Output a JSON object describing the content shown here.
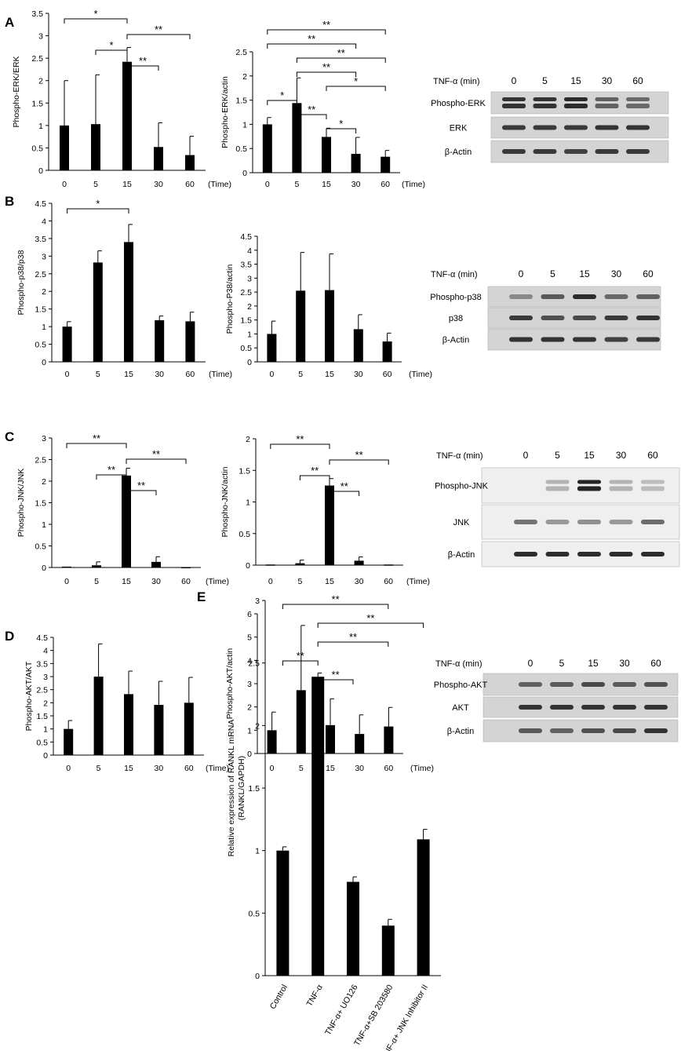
{
  "figure": {
    "wb_header": "TNF-α (min)",
    "wb_lanes": [
      "0",
      "5",
      "15",
      "30",
      "60"
    ],
    "time_label": "(Time)",
    "time_categories": [
      "0",
      "5",
      "15",
      "30",
      "60"
    ],
    "colors": {
      "bar": "#000000",
      "band": "#1a1a1a",
      "blot_bg": "#d4d4d4",
      "blot_bg_light": "#efefef"
    }
  },
  "blots": [
    {
      "panel": "A",
      "rows": [
        {
          "label": "Phospho-ERK",
          "bands": [
            0.85,
            0.85,
            0.9,
            0.55,
            0.5
          ],
          "doublet": true
        },
        {
          "label": "ERK",
          "bands": [
            0.8,
            0.8,
            0.8,
            0.85,
            0.85
          ]
        },
        {
          "label": "β-Actin",
          "bands": [
            0.8,
            0.8,
            0.75,
            0.8,
            0.8
          ]
        }
      ]
    },
    {
      "panel": "B",
      "rows": [
        {
          "label": "Phospho-p38",
          "bands": [
            0.3,
            0.6,
            0.9,
            0.5,
            0.55
          ]
        },
        {
          "label": "p38",
          "bands": [
            0.8,
            0.65,
            0.7,
            0.8,
            0.85
          ]
        },
        {
          "label": "β-Actin",
          "bands": [
            0.85,
            0.85,
            0.85,
            0.75,
            0.8
          ]
        }
      ]
    },
    {
      "panel": "C",
      "rows": [
        {
          "label": "Phospho-JNK",
          "bands": [
            0.0,
            0.15,
            0.95,
            0.15,
            0.1
          ],
          "doublet": true,
          "light": true
        },
        {
          "label": "JNK",
          "bands": [
            0.5,
            0.3,
            0.35,
            0.3,
            0.55
          ],
          "light": true
        },
        {
          "label": "β-Actin",
          "bands": [
            0.9,
            0.9,
            0.9,
            0.9,
            0.9
          ],
          "light": true
        }
      ]
    },
    {
      "panel": "D",
      "rows": [
        {
          "label": "Phospho-AKT",
          "bands": [
            0.55,
            0.6,
            0.7,
            0.6,
            0.65
          ]
        },
        {
          "label": "AKT",
          "bands": [
            0.85,
            0.85,
            0.85,
            0.85,
            0.85
          ]
        },
        {
          "label": "β-Actin",
          "bands": [
            0.6,
            0.55,
            0.65,
            0.7,
            0.85
          ]
        }
      ]
    }
  ],
  "chart_data": [
    {
      "id": "A1",
      "panel_letter": "A",
      "type": "bar",
      "ylabel": "Phospho-ERK/ERK",
      "categories": [
        "0",
        "5",
        "15",
        "30",
        "60"
      ],
      "values": [
        1.0,
        1.03,
        2.42,
        0.52,
        0.34
      ],
      "errors": [
        1.0,
        1.1,
        0.32,
        0.54,
        0.42
      ],
      "ylim": [
        0,
        3.5
      ],
      "yticks": [
        "0",
        "0.5",
        "1",
        "1.5",
        "2",
        "2.5",
        "3",
        "3.5"
      ],
      "significance": [
        {
          "from": 0,
          "to": 2,
          "label": "*"
        },
        {
          "from": 1,
          "to": 2,
          "label": "*"
        },
        {
          "from": 2,
          "to": 3,
          "label": "**"
        },
        {
          "from": 2,
          "to": 4,
          "label": "**"
        }
      ]
    },
    {
      "id": "A2",
      "type": "bar",
      "ylabel": "Phospho-ERK/actin",
      "categories": [
        "0",
        "5",
        "15",
        "30",
        "60"
      ],
      "values": [
        1.0,
        1.44,
        0.74,
        0.39,
        0.33
      ],
      "errors": [
        0.14,
        0.52,
        0.18,
        0.34,
        0.13
      ],
      "ylim": [
        0,
        2.5
      ],
      "yticks": [
        "0",
        "0.5",
        "1",
        "1.5",
        "2",
        "2.5"
      ],
      "significance": [
        {
          "from": 0,
          "to": 4,
          "label": "**"
        },
        {
          "from": 0,
          "to": 3,
          "label": "**"
        },
        {
          "from": 1,
          "to": 4,
          "label": "**"
        },
        {
          "from": 0,
          "to": 1,
          "label": "*"
        },
        {
          "from": 1,
          "to": 3,
          "label": "**"
        },
        {
          "from": 1,
          "to": 2,
          "label": "**"
        },
        {
          "from": 2,
          "to": 4,
          "label": "*"
        },
        {
          "from": 2,
          "to": 3,
          "label": "*"
        }
      ]
    },
    {
      "id": "B1",
      "panel_letter": "B",
      "type": "bar",
      "ylabel": "Phospho-p38/p38",
      "categories": [
        "0",
        "5",
        "15",
        "30",
        "60"
      ],
      "values": [
        1.0,
        2.82,
        3.4,
        1.18,
        1.15
      ],
      "errors": [
        0.14,
        0.33,
        0.5,
        0.12,
        0.26
      ],
      "ylim": [
        0,
        4.5
      ],
      "yticks": [
        "0",
        "0.5",
        "1",
        "1.5",
        "2",
        "2.5",
        "3",
        "3.5",
        "4",
        "4.5"
      ],
      "significance": [
        {
          "from": 0,
          "to": 2,
          "label": "*"
        }
      ]
    },
    {
      "id": "B2",
      "type": "bar",
      "ylabel": "Phospho-P38/actin",
      "categories": [
        "0",
        "5",
        "15",
        "30",
        "60"
      ],
      "values": [
        1.0,
        2.55,
        2.57,
        1.17,
        0.73
      ],
      "errors": [
        0.46,
        1.37,
        1.3,
        0.52,
        0.3
      ],
      "ylim": [
        0,
        4.5
      ],
      "yticks": [
        "0",
        "0.5",
        "1",
        "1.5",
        "2",
        "2.5",
        "3",
        "3.5",
        "4",
        "4.5"
      ],
      "significance": []
    },
    {
      "id": "C1",
      "panel_letter": "C",
      "type": "bar",
      "ylabel": "Phospho-JNK/JNK",
      "categories": [
        "0",
        "5",
        "15",
        "30",
        "60"
      ],
      "values": [
        0.02,
        0.05,
        2.13,
        0.13,
        0.01
      ],
      "errors": [
        0.0,
        0.08,
        0.17,
        0.12,
        0.0
      ],
      "ylim": [
        0,
        3
      ],
      "yticks": [
        "0",
        "0.5",
        "1",
        "1.5",
        "2",
        "2.5",
        "3"
      ],
      "significance": [
        {
          "from": 0,
          "to": 2,
          "label": "**"
        },
        {
          "from": 1,
          "to": 2,
          "label": "**"
        },
        {
          "from": 2,
          "to": 4,
          "label": "**"
        },
        {
          "from": 2,
          "to": 3,
          "label": "**"
        }
      ]
    },
    {
      "id": "C2",
      "type": "bar",
      "ylabel": "Phospho-JNK/actin",
      "categories": [
        "0",
        "5",
        "15",
        "30",
        "60"
      ],
      "values": [
        0.01,
        0.03,
        1.26,
        0.07,
        0.01
      ],
      "errors": [
        0.0,
        0.05,
        0.11,
        0.06,
        0.0
      ],
      "ylim": [
        0,
        2
      ],
      "yticks": [
        "0",
        "0.5",
        "1",
        "1.5",
        "2"
      ],
      "significance": [
        {
          "from": 0,
          "to": 2,
          "label": "**"
        },
        {
          "from": 1,
          "to": 2,
          "label": "**"
        },
        {
          "from": 2,
          "to": 4,
          "label": "**"
        },
        {
          "from": 2,
          "to": 3,
          "label": "**"
        }
      ]
    },
    {
      "id": "D1",
      "panel_letter": "D",
      "type": "bar",
      "ylabel": "Phospho-AKT/AKT",
      "categories": [
        "0",
        "5",
        "15",
        "30",
        "60"
      ],
      "values": [
        1.0,
        3.0,
        2.33,
        1.92,
        2.0
      ],
      "errors": [
        0.32,
        1.25,
        0.88,
        0.9,
        0.97
      ],
      "ylim": [
        0,
        4.5
      ],
      "yticks": [
        "0",
        "0.5",
        "1",
        "1.5",
        "2",
        "2.5",
        "3",
        "3.5",
        "4",
        "4.5"
      ],
      "significance": []
    },
    {
      "id": "D2",
      "type": "bar",
      "ylabel": "Phospho-AKT/actin",
      "categories": [
        "0",
        "5",
        "15",
        "30",
        "60"
      ],
      "values": [
        1.0,
        2.72,
        1.22,
        0.84,
        1.16
      ],
      "errors": [
        0.78,
        2.78,
        1.13,
        0.82,
        0.82
      ],
      "ylim": [
        0,
        6
      ],
      "yticks": [
        "0",
        "1",
        "2",
        "3",
        "4",
        "5",
        "6"
      ],
      "significance": []
    },
    {
      "id": "E",
      "panel_letter": "E",
      "type": "bar",
      "ylabel": "Relative expression of RANKL mRNA",
      "ylabel2": "(RANKL/GAPDH)",
      "categories": [
        "Control",
        "TNF-α",
        "TNF-α+ UO126",
        "TNF-α+SB 203580",
        "TNF-α+ JNK Inhibitor II"
      ],
      "values": [
        1.0,
        2.39,
        0.75,
        0.4,
        1.09
      ],
      "errors": [
        0.03,
        0.03,
        0.04,
        0.05,
        0.08
      ],
      "ylim": [
        0,
        3
      ],
      "yticks": [
        "0",
        "0.5",
        "1",
        "1.5",
        "2",
        "2.5",
        "3"
      ],
      "significance": [
        {
          "from": 0,
          "to": 3,
          "label": "**"
        },
        {
          "from": 0,
          "to": 1,
          "label": "**"
        },
        {
          "from": 1,
          "to": 4,
          "label": "**"
        },
        {
          "from": 1,
          "to": 3,
          "label": "**"
        },
        {
          "from": 1,
          "to": 2,
          "label": "**"
        }
      ]
    }
  ]
}
